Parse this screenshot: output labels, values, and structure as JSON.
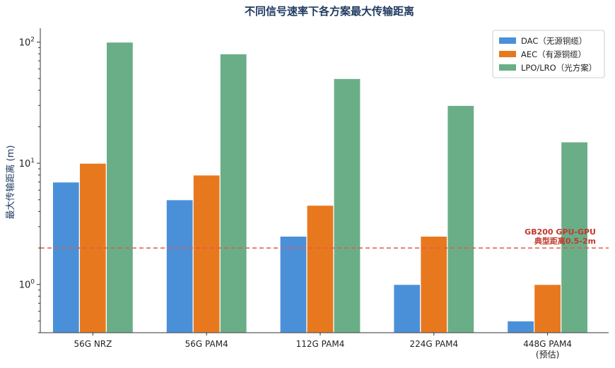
{
  "chart_data": {
    "type": "bar",
    "title": "不同信号速率下各方案最大传输距离",
    "ylabel": "最大传输距离 (m)",
    "xlabel": "",
    "yscale": "log",
    "ylim": [
      0.4,
      130
    ],
    "grid": false,
    "legend_position": "top-right",
    "categories": [
      "56G NRZ",
      "56G PAM4",
      "112G PAM4",
      "224G PAM4",
      "448G PAM4\n(预估)"
    ],
    "series": [
      {
        "name": "DAC（无源铜缆）",
        "color": "#4a90d9",
        "values": [
          7,
          5,
          2.5,
          1,
          0.5
        ]
      },
      {
        "name": "AEC（有源铜缆）",
        "color": "#e8781e",
        "values": [
          10,
          8,
          4.5,
          2.5,
          1
        ]
      },
      {
        "name": "LPO/LRO（光方案）",
        "color": "#6aae88",
        "values": [
          100,
          80,
          50,
          30,
          15
        ]
      }
    ],
    "yticks": [
      {
        "value": 1,
        "label": "10^0"
      },
      {
        "value": 10,
        "label": "10^1"
      },
      {
        "value": 100,
        "label": "10^2"
      }
    ],
    "reference_line": {
      "value": 2,
      "color": "#e05a4a",
      "label_line1": "GB200 GPU-GPU",
      "label_line2": "典型距离0.5-2m"
    }
  }
}
